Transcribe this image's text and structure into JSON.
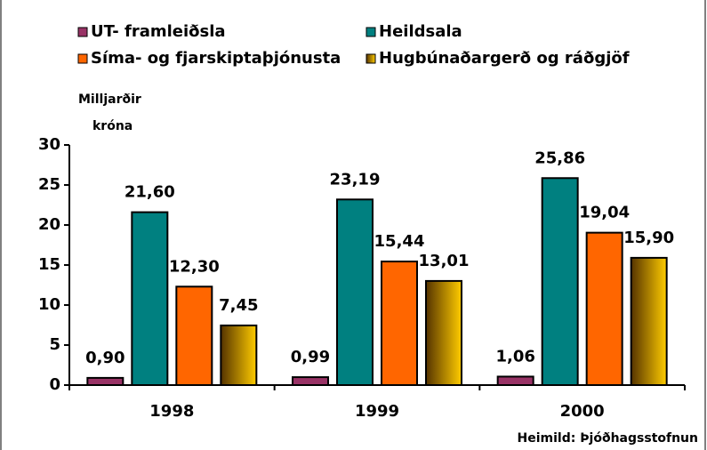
{
  "chart_data": {
    "type": "bar",
    "y_label": [
      "Milljarðir",
      "króna"
    ],
    "source": "Heimild: Þjóðhagsstofnun",
    "categories": [
      "1998",
      "1999",
      "2000"
    ],
    "series": [
      {
        "name": "UT- framleiðsla",
        "color": "#993366",
        "values": [
          0.9,
          0.99,
          1.06
        ],
        "value_labels": [
          "0,90",
          "0,99",
          "1,06"
        ]
      },
      {
        "name": "Heildsala",
        "color": "#008080",
        "values": [
          21.6,
          23.19,
          25.86
        ],
        "value_labels": [
          "21,60",
          "23,19",
          "25,86"
        ]
      },
      {
        "name": "Síma- og fjarskiptaþjónusta",
        "color": "#ff6600",
        "values": [
          12.3,
          15.44,
          19.04
        ],
        "value_labels": [
          "12,30",
          "15,44",
          "19,04"
        ]
      },
      {
        "name": "Hugbúnaðargerð og ráðgjöf",
        "color": "#ffcc00",
        "values": [
          7.45,
          13.01,
          15.9
        ],
        "value_labels": [
          "7,45",
          "13,01",
          "15,90"
        ]
      }
    ],
    "ylim": [
      0,
      30
    ],
    "yticks": [
      0,
      5,
      10,
      15,
      20,
      25,
      30
    ]
  }
}
